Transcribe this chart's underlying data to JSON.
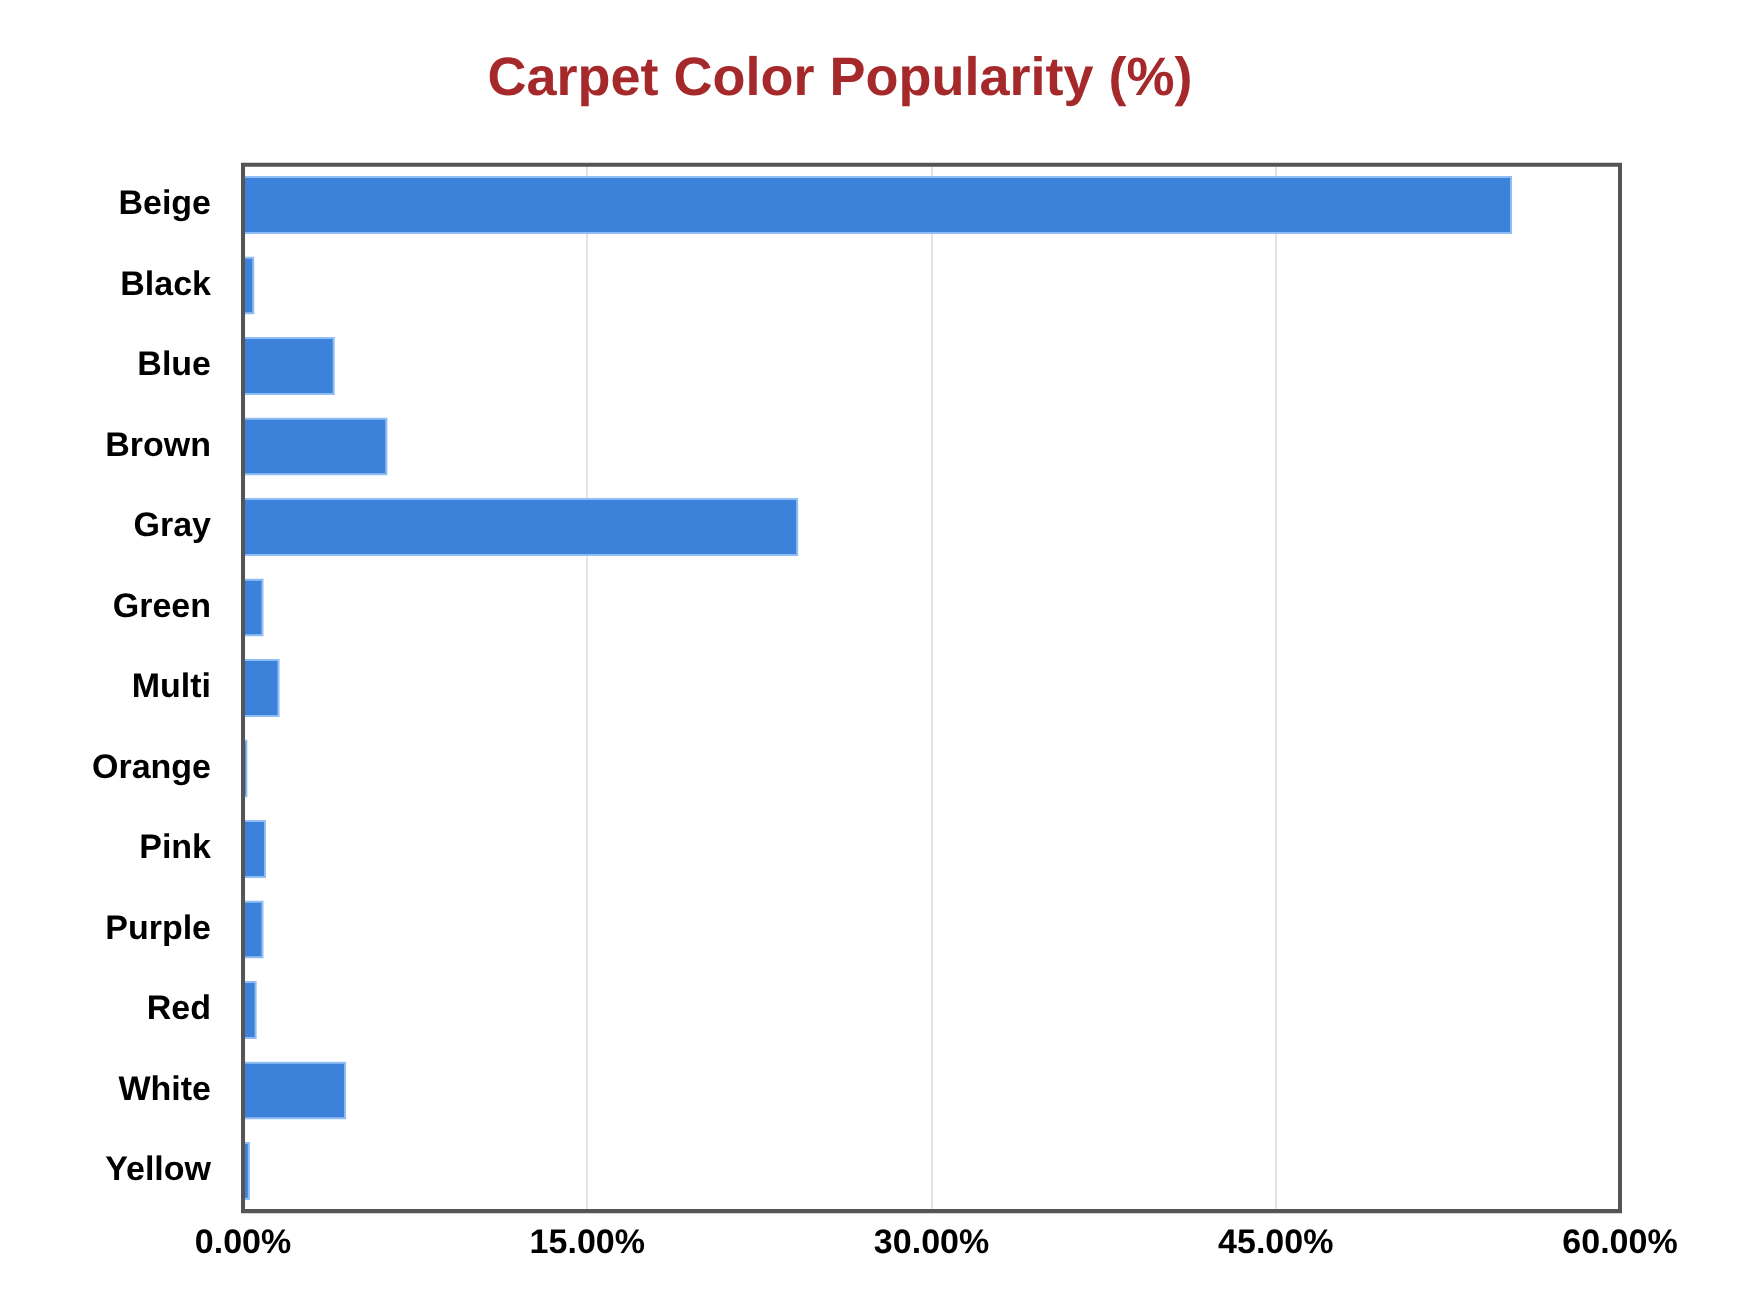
{
  "chart_data": {
    "type": "bar",
    "orientation": "horizontal",
    "title": "Carpet Color Popularity (%)",
    "categories": [
      "Beige",
      "Black",
      "Blue",
      "Brown",
      "Gray",
      "Green",
      "Multi",
      "Orange",
      "Pink",
      "Purple",
      "Red",
      "White",
      "Yellow"
    ],
    "values": [
      55.3,
      0.5,
      4.0,
      6.3,
      24.2,
      0.9,
      1.6,
      0.2,
      1.0,
      0.9,
      0.6,
      4.5,
      0.3
    ],
    "color": "#3d82da",
    "xlim": [
      0,
      60
    ],
    "xticks": [
      {
        "value": 0,
        "label": "0.00%"
      },
      {
        "value": 15,
        "label": "15.00%"
      },
      {
        "value": 30,
        "label": "30.00%"
      },
      {
        "value": 45,
        "label": "45.00%"
      },
      {
        "value": 60,
        "label": "60.00%"
      }
    ],
    "grid": "x",
    "legend": false
  }
}
